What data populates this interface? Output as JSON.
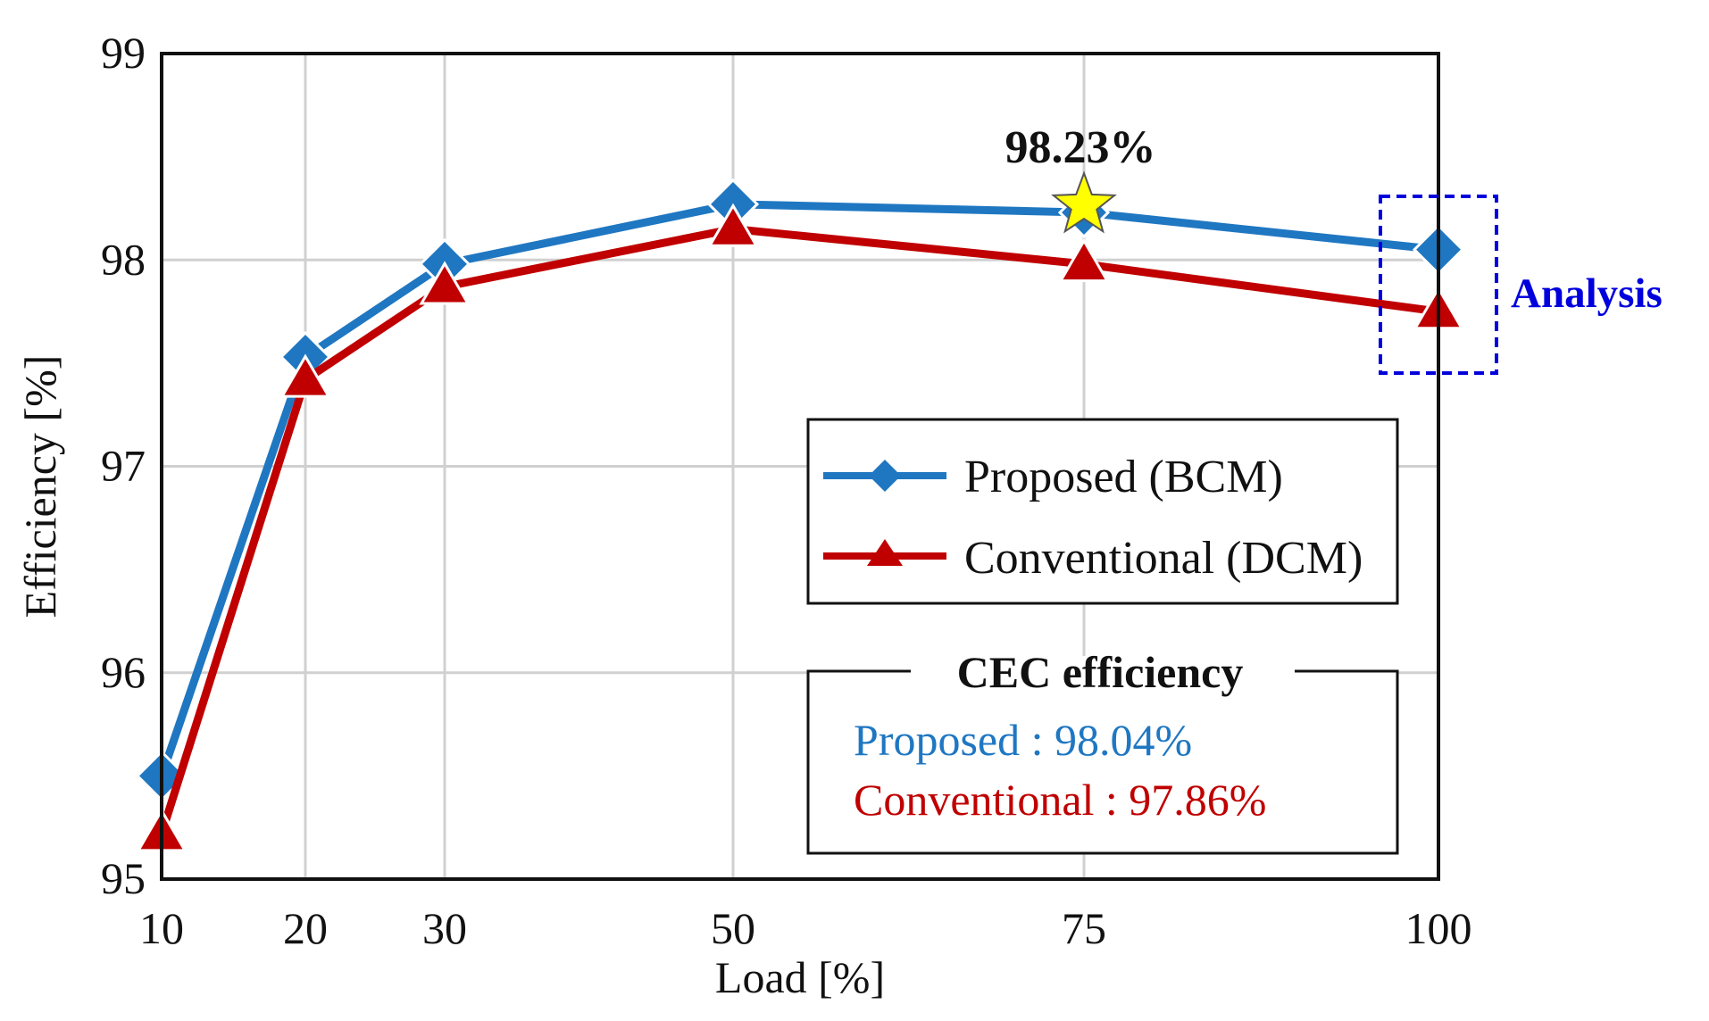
{
  "chart_data": {
    "type": "line",
    "xlabel": "Load [%]",
    "ylabel": "Efficiency [%]",
    "x": [
      10,
      20,
      30,
      50,
      75,
      100
    ],
    "x_tick_labels": [
      "10",
      "20",
      "30",
      "50",
      "75",
      "100"
    ],
    "xlim": [
      10,
      100
    ],
    "ylim": [
      95,
      99
    ],
    "y_ticks": [
      95,
      96,
      97,
      98,
      99
    ],
    "y_tick_labels": [
      "95",
      "96",
      "97",
      "98",
      "99"
    ],
    "grid": true,
    "series": [
      {
        "name": "Proposed (BCM)",
        "marker": "diamond",
        "color": "#1f77c2",
        "values": [
          95.5,
          97.53,
          97.98,
          98.27,
          98.23,
          98.05
        ]
      },
      {
        "name": "Conventional (DCM)",
        "marker": "triangle",
        "color": "#c00000",
        "values": [
          95.22,
          97.42,
          97.87,
          98.15,
          97.98,
          97.75
        ]
      }
    ],
    "annotations": {
      "peak": {
        "label": "98.23%",
        "x": 75,
        "y": 98.23,
        "marker_color": "#ffff00"
      },
      "analysis": {
        "label": "Analysis",
        "x": 100,
        "color": "#0000dd"
      }
    },
    "legend": {
      "placement": "center-right",
      "entries": [
        "Proposed (BCM)",
        "Conventional (DCM)"
      ]
    },
    "cec_box": {
      "title": "CEC efficiency",
      "proposed_label": "Proposed : 98.04%",
      "conventional_label": "Conventional : 97.86%",
      "proposed_color": "#1f77c2",
      "conventional_color": "#c00000"
    }
  }
}
